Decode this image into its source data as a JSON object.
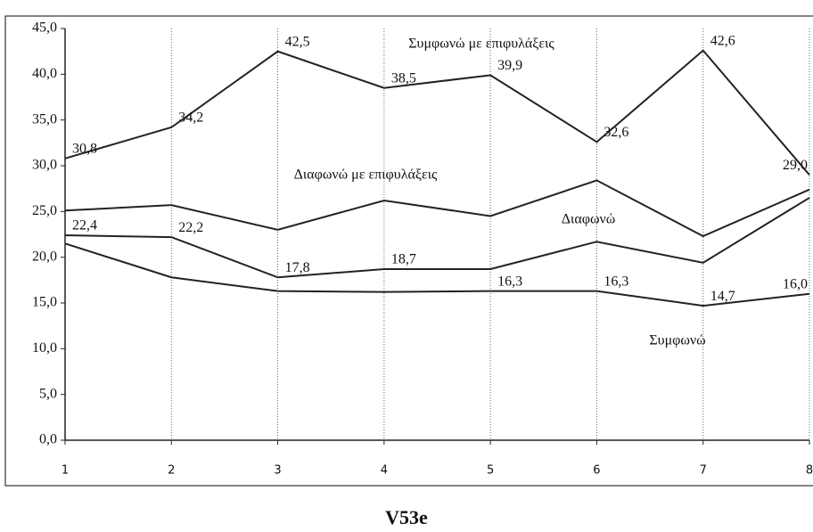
{
  "chart_data": {
    "type": "line",
    "title": "V53e",
    "x": [
      1,
      2,
      3,
      4,
      5,
      6,
      7,
      8
    ],
    "xlim": [
      1,
      8
    ],
    "xticks": [
      1,
      2,
      3,
      4,
      5,
      6,
      7,
      8
    ],
    "ylim": [
      0,
      45
    ],
    "yticks": [
      {
        "value": 0,
        "label": "0,0"
      },
      {
        "value": 5,
        "label": "5,0"
      },
      {
        "value": 10,
        "label": "10,0"
      },
      {
        "value": 15,
        "label": "15,0"
      },
      {
        "value": 20,
        "label": "20,0"
      },
      {
        "value": 25,
        "label": "25,0"
      },
      {
        "value": 30,
        "label": "30,0"
      },
      {
        "value": 35,
        "label": "35,0"
      },
      {
        "value": 40,
        "label": "40,0"
      },
      {
        "value": 45,
        "label": "45,0"
      }
    ],
    "grid": "x",
    "series": [
      {
        "name": "Συμφωνώ με επιφυλάξεις",
        "color": "#222222",
        "values": [
          30.8,
          34.2,
          42.5,
          38.5,
          39.9,
          32.6,
          42.6,
          29.0
        ],
        "value_labels": [
          "30,8",
          "34,2",
          "42,5",
          "38,5",
          "39,9",
          "32,6",
          "42,6",
          "29,0"
        ]
      },
      {
        "name": "Διαφωνώ με επιφυλάξεις",
        "color": "#222222",
        "values": [
          25.1,
          25.7,
          23.0,
          26.2,
          24.5,
          28.4,
          22.3,
          27.4
        ]
      },
      {
        "name": "Διαφωνώ",
        "color": "#222222",
        "values": [
          22.4,
          22.2,
          17.8,
          18.7,
          18.7,
          21.7,
          19.4,
          26.5
        ],
        "value_labels": [
          "22,4",
          "22,2",
          "17,8",
          "18,7",
          null,
          null,
          null,
          null
        ]
      },
      {
        "name": "Συμφωνώ",
        "color": "#222222",
        "values": [
          21.5,
          17.8,
          16.3,
          16.2,
          16.3,
          16.3,
          14.7,
          16.0
        ],
        "value_labels": [
          null,
          null,
          null,
          null,
          "16,3",
          "16,3",
          "14,7",
          "16,0"
        ]
      }
    ]
  }
}
